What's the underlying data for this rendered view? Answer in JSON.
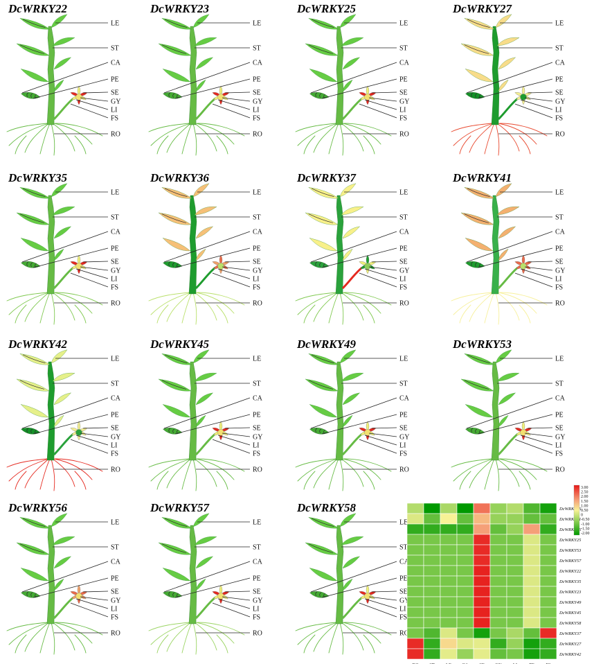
{
  "organ_labels": [
    "LE",
    "ST",
    "CA",
    "PE",
    "SE",
    "GY",
    "LI",
    "FS",
    "RO"
  ],
  "colors": {
    "dark_green": "#1c9b2c",
    "green": "#38b04a",
    "bright_green": "#66cc44",
    "yellow_green": "#b6e06a",
    "pale_yellow": "#f7f09a",
    "light_orange": "#f6c97a",
    "orange": "#f0a068",
    "red_orange": "#ea6a4a",
    "red": "#e3261f"
  },
  "panels": [
    {
      "gene": "DcWRKY22",
      "fills": {
        "LE": "#66cc44",
        "ST": "#66bb44",
        "CA": "#66cc44",
        "PE": "#44aa33",
        "SE": "#f0f07a",
        "GY": "#f2e070",
        "LI": "#e5291f",
        "FS": "#66bb44",
        "RO": "#66bb44"
      }
    },
    {
      "gene": "DcWRKY23",
      "fills": {
        "LE": "#66cc44",
        "ST": "#66bb44",
        "CA": "#66cc44",
        "PE": "#44aa33",
        "SE": "#f0f07a",
        "GY": "#f2e070",
        "LI": "#e5291f",
        "FS": "#66bb44",
        "RO": "#66bb44"
      }
    },
    {
      "gene": "DcWRKY25",
      "fills": {
        "LE": "#66cc44",
        "ST": "#66bb44",
        "CA": "#66cc44",
        "PE": "#44aa33",
        "SE": "#f0f07a",
        "GY": "#f2e070",
        "LI": "#e5291f",
        "FS": "#66bb44",
        "RO": "#66bb44"
      }
    },
    {
      "gene": "DcWRKY27",
      "fills": {
        "LE": "#f8dc8a",
        "ST": "#1e9c2e",
        "CA": "#f8dc8a",
        "PE": "#149028",
        "SE": "#f3ee92",
        "GY": "#1e9c2e",
        "LI": "#f3ee92",
        "FS": "#1e9c2e",
        "RO": "#e8482e"
      }
    },
    {
      "gene": "DcWRKY35",
      "fills": {
        "LE": "#66cc44",
        "ST": "#66bb44",
        "CA": "#66cc44",
        "PE": "#44aa33",
        "SE": "#f0f07a",
        "GY": "#f2e070",
        "LI": "#e5291f",
        "FS": "#66bb44",
        "RO": "#7ec84e"
      }
    },
    {
      "gene": "DcWRKY36",
      "fills": {
        "LE": "#f6c078",
        "ST": "#1e9c2e",
        "CA": "#f3b670",
        "PE": "#1e9c2e",
        "SE": "#e96d4a",
        "GY": "#b9e06a",
        "LI": "#f0a068",
        "FS": "#1e9c2e",
        "RO": "#b9e06a"
      }
    },
    {
      "gene": "DcWRKY37",
      "fills": {
        "LE": "#f8f08a",
        "ST": "#2aa23c",
        "CA": "#f6e882",
        "PE": "#2aa23c",
        "SE": "#1e9c2e",
        "GY": "#8fcc5a",
        "LI": "#f0f07a",
        "FS": "#e5291f",
        "RO": "#7ec84e"
      }
    },
    {
      "gene": "DcWRKY41",
      "fills": {
        "LE": "#f4b070",
        "ST": "#38b04a",
        "CA": "#f4b070",
        "PE": "#1e9c2e",
        "SE": "#ea6a4a",
        "GY": "#b9e06a",
        "LI": "#ea6a4a",
        "FS": "#66bb44",
        "RO": "#f7f09a"
      }
    },
    {
      "gene": "DcWRKY42",
      "fills": {
        "LE": "#e6f08a",
        "ST": "#1e9c2e",
        "CA": "#eef08a",
        "PE": "#149028",
        "SE": "#f3ee92",
        "GY": "#2aa23c",
        "LI": "#f3ee92",
        "FS": "#2aa23c",
        "RO": "#e5291f"
      }
    },
    {
      "gene": "DcWRKY45",
      "fills": {
        "LE": "#66cc44",
        "ST": "#66bb44",
        "CA": "#66cc44",
        "PE": "#44aa33",
        "SE": "#f0f07a",
        "GY": "#f2e070",
        "LI": "#e5291f",
        "FS": "#66bb44",
        "RO": "#66bb44"
      }
    },
    {
      "gene": "DcWRKY49",
      "fills": {
        "LE": "#66cc44",
        "ST": "#66bb44",
        "CA": "#66cc44",
        "PE": "#44aa33",
        "SE": "#f0f07a",
        "GY": "#f2e070",
        "LI": "#e5291f",
        "FS": "#66bb44",
        "RO": "#66bb44"
      }
    },
    {
      "gene": "DcWRKY53",
      "fills": {
        "LE": "#66cc44",
        "ST": "#66bb44",
        "CA": "#66cc44",
        "PE": "#44aa33",
        "SE": "#f0f07a",
        "GY": "#f2e070",
        "LI": "#e5291f",
        "FS": "#66bb44",
        "RO": "#66bb44"
      }
    },
    {
      "gene": "DcWRKY56",
      "fills": {
        "LE": "#66cc44",
        "ST": "#66bb44",
        "CA": "#66cc44",
        "PE": "#44aa33",
        "SE": "#f0a068",
        "GY": "#f2e070",
        "LI": "#ea6a4a",
        "FS": "#66bb44",
        "RO": "#66bb44"
      }
    },
    {
      "gene": "DcWRKY57",
      "fills": {
        "LE": "#66cc44",
        "ST": "#66bb44",
        "CA": "#66cc44",
        "PE": "#44aa33",
        "SE": "#f0f07a",
        "GY": "#f2e070",
        "LI": "#e5291f",
        "FS": "#66bb44",
        "RO": "#9ad462"
      }
    },
    {
      "gene": "DcWRKY58",
      "fills": {
        "LE": "#66cc44",
        "ST": "#66bb44",
        "CA": "#66cc44",
        "PE": "#44aa33",
        "SE": "#f0f07a",
        "GY": "#f2e070",
        "LI": "#e5291f",
        "FS": "#66bb44",
        "RO": "#66bb44"
      }
    }
  ],
  "chart_data": {
    "type": "heatmap",
    "columns": [
      "RO",
      "ST",
      "LE",
      "CA",
      "SE",
      "GY",
      "LI",
      "PE",
      "FS"
    ],
    "rows": [
      "DcWRKY36",
      "DcWRKY41",
      "DcWRKY56",
      "DcWRKY25",
      "DcWRKY53",
      "DcWRKY57",
      "DcWRKY22",
      "DcWRKY35",
      "DcWRKY23",
      "DcWRKY49",
      "DcWRKY45",
      "DcWRKY58",
      "DcWRKY37",
      "DcWRKY27",
      "DcWRKY42"
    ],
    "values": [
      [
        -0.2,
        -2.0,
        -0.3,
        -2.0,
        2.0,
        -0.5,
        -0.2,
        -1.2,
        -1.8
      ],
      [
        0.2,
        -1.0,
        0.5,
        -1.0,
        1.2,
        -0.5,
        -0.5,
        -1.0,
        -1.0
      ],
      [
        -1.5,
        -1.5,
        -1.5,
        -1.5,
        1.5,
        -1.0,
        -0.5,
        1.5,
        -1.5
      ],
      [
        -0.8,
        -0.8,
        -0.8,
        -0.8,
        2.8,
        -0.8,
        -0.8,
        0.2,
        -0.8
      ],
      [
        -0.8,
        -0.8,
        -0.8,
        -0.8,
        2.8,
        -0.8,
        -0.8,
        0.2,
        -0.8
      ],
      [
        -0.8,
        -0.8,
        -0.8,
        -0.8,
        2.8,
        -0.8,
        -0.8,
        0.2,
        -0.8
      ],
      [
        -0.8,
        -0.8,
        -0.8,
        -0.8,
        2.9,
        -0.8,
        -0.8,
        0.2,
        -0.8
      ],
      [
        -0.8,
        -0.8,
        -0.8,
        -0.8,
        2.9,
        -0.8,
        -0.8,
        0.2,
        -0.8
      ],
      [
        -0.8,
        -0.8,
        -0.8,
        -0.8,
        2.9,
        -0.8,
        -0.8,
        0.2,
        -0.8
      ],
      [
        -0.8,
        -0.8,
        -0.8,
        -0.8,
        2.9,
        -0.8,
        -0.8,
        0.2,
        -0.8
      ],
      [
        -0.8,
        -0.8,
        -0.8,
        -0.8,
        2.9,
        -0.8,
        -0.8,
        0.2,
        -0.8
      ],
      [
        -0.8,
        -0.8,
        -0.8,
        -0.8,
        2.9,
        -0.8,
        -0.8,
        0.2,
        -0.8
      ],
      [
        -0.8,
        -1.2,
        0.2,
        -0.8,
        -1.8,
        -0.8,
        -0.3,
        -1.0,
        2.8
      ],
      [
        2.8,
        -1.5,
        0.8,
        0.2,
        0.3,
        -1.5,
        -0.5,
        -1.8,
        -1.5
      ],
      [
        2.8,
        -1.5,
        0.3,
        -0.5,
        0.3,
        -1.0,
        -0.8,
        -1.8,
        -1.5
      ]
    ],
    "colorbar": {
      "min": -2.0,
      "max": 3.0,
      "ticks": [
        "3.00",
        "2.50",
        "2.00",
        "1.50",
        "1.00",
        "0.50",
        "0",
        "-0.50",
        "-1.00",
        "-1.50",
        "-2.00"
      ]
    }
  }
}
